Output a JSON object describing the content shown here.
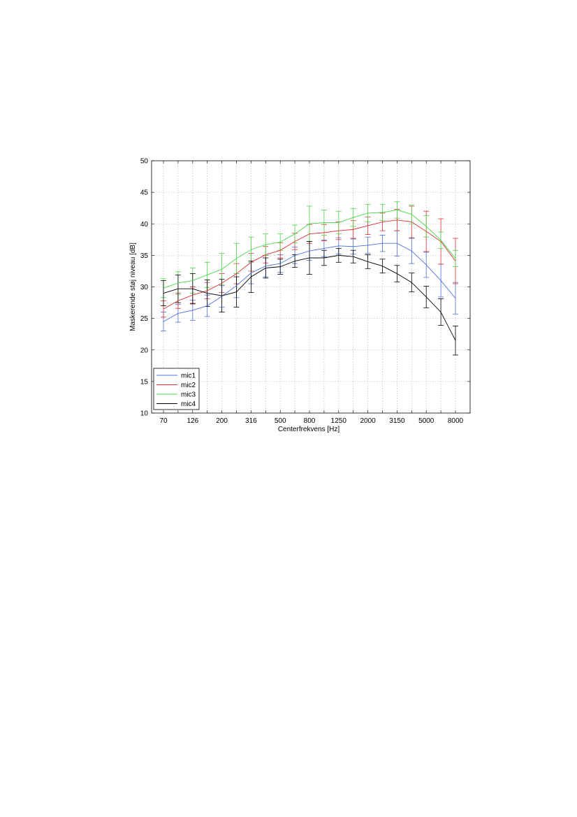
{
  "chart_data": {
    "type": "line",
    "title": "",
    "xlabel": "Centerfrekvens [Hz]",
    "ylabel": "Maskerende støj niveau [dB]",
    "ylim": [
      10,
      50
    ],
    "yticks": [
      "10",
      "15",
      "20",
      "25",
      "30",
      "35",
      "40",
      "45",
      "50"
    ],
    "xtick_labels": [
      "70",
      "126",
      "200",
      "316",
      "500",
      "800",
      "1250",
      "2000",
      "3150",
      "5000",
      "8000"
    ],
    "x": [
      70,
      100,
      126,
      160,
      200,
      250,
      316,
      400,
      500,
      630,
      800,
      1000,
      1250,
      1600,
      2000,
      2500,
      3150,
      4000,
      5000,
      6300,
      8000
    ],
    "grid": true,
    "legend_location": "lower-left",
    "error_bars": true,
    "series": [
      {
        "name": "mic1",
        "color": "#4a6fe0",
        "values": [
          24.5,
          25.8,
          26.3,
          27.0,
          28.5,
          30.2,
          32.2,
          33.3,
          33.7,
          35.0,
          35.7,
          36.1,
          36.5,
          36.4,
          36.6,
          36.9,
          36.9,
          35.7,
          33.5,
          31.0,
          28.2
        ],
        "errors": [
          1.5,
          1.4,
          1.6,
          1.7,
          1.7,
          1.9,
          1.7,
          1.7,
          1.4,
          1.3,
          1.5,
          1.3,
          1.3,
          1.2,
          1.3,
          1.3,
          2.0,
          2.0,
          2.0,
          2.6,
          2.5
        ]
      },
      {
        "name": "mic2",
        "color": "#e03030",
        "values": [
          26.5,
          27.8,
          28.7,
          29.4,
          30.6,
          32.1,
          33.9,
          35.1,
          35.8,
          37.2,
          38.4,
          38.6,
          38.9,
          39.1,
          39.7,
          40.3,
          40.6,
          40.3,
          38.8,
          37.2,
          34.1
        ],
        "errors": [
          1.3,
          1.2,
          1.3,
          1.3,
          1.5,
          1.6,
          1.4,
          1.3,
          1.2,
          1.3,
          1.5,
          1.3,
          1.4,
          1.4,
          1.4,
          1.4,
          1.7,
          2.5,
          3.2,
          3.6,
          3.6
        ]
      },
      {
        "name": "mic3",
        "color": "#4bd64b",
        "values": [
          29.8,
          30.6,
          31.0,
          31.9,
          32.8,
          34.5,
          35.9,
          36.7,
          37.1,
          38.4,
          40.0,
          40.2,
          40.2,
          41.0,
          41.7,
          41.8,
          42.2,
          41.5,
          39.6,
          37.4,
          34.5
        ],
        "errors": [
          1.5,
          1.8,
          2.0,
          2.0,
          2.5,
          2.4,
          2.0,
          1.7,
          1.3,
          1.4,
          2.8,
          2.0,
          1.8,
          1.4,
          1.4,
          1.3,
          1.3,
          1.5,
          1.7,
          1.3,
          1.3
        ]
      },
      {
        "name": "mic4",
        "color": "#000000",
        "values": [
          29.0,
          29.7,
          29.7,
          29.0,
          28.6,
          29.2,
          31.6,
          33.0,
          33.2,
          34.1,
          34.6,
          34.6,
          35.0,
          34.8,
          34.0,
          33.3,
          32.1,
          30.7,
          28.4,
          26.0,
          21.5
        ],
        "errors": [
          2.0,
          2.2,
          2.4,
          2.1,
          2.6,
          2.4,
          2.5,
          1.6,
          1.2,
          1.0,
          2.6,
          1.2,
          1.1,
          1.0,
          1.1,
          1.1,
          1.3,
          1.5,
          1.7,
          2.1,
          2.3
        ]
      }
    ]
  }
}
